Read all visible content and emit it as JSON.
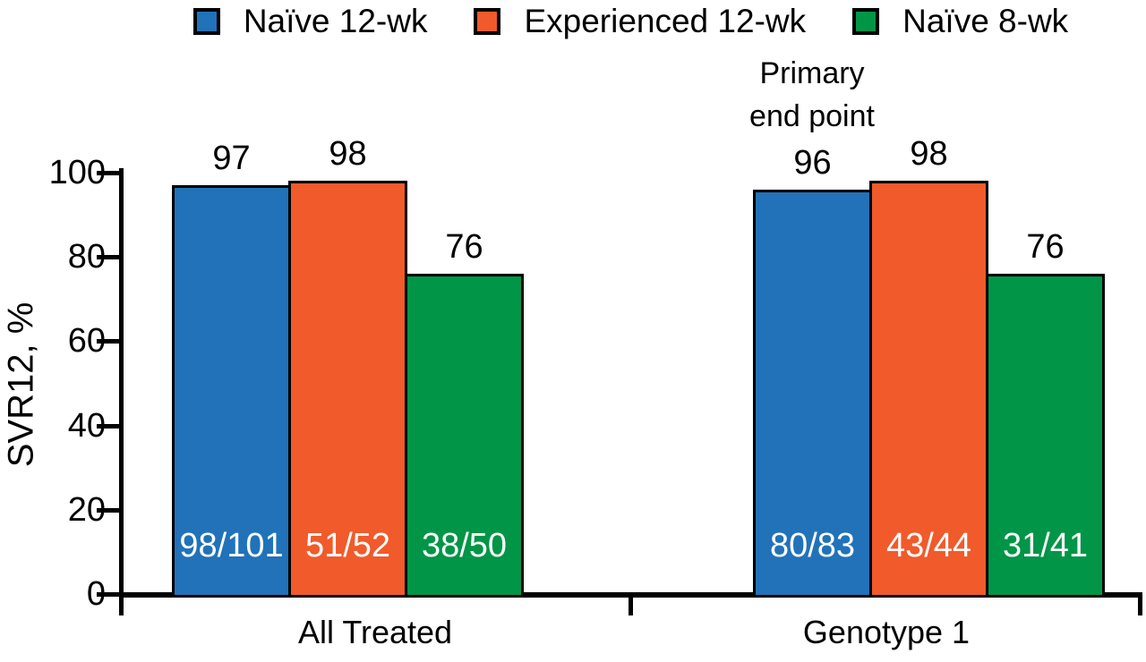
{
  "chart_data": {
    "type": "bar",
    "title": "",
    "ylabel": "SVR12, %",
    "xlabel": "",
    "ylim": [
      0,
      100
    ],
    "yticks": [
      0,
      20,
      40,
      60,
      80,
      100
    ],
    "grid": false,
    "legend_position": "top",
    "categories": [
      "All Treated",
      "Genotype 1"
    ],
    "series": [
      {
        "name": "Naïve 12-wk",
        "color": "#2172B9",
        "values": [
          97,
          96
        ],
        "bar_labels": [
          "98/101",
          "80/83"
        ]
      },
      {
        "name": "Experienced 12-wk",
        "color": "#F15A2B",
        "values": [
          98,
          98
        ],
        "bar_labels": [
          "51/52",
          "43/44"
        ]
      },
      {
        "name": "Naïve 8-wk",
        "color": "#009547",
        "values": [
          76,
          76
        ],
        "bar_labels": [
          "38/50",
          "31/41"
        ]
      }
    ],
    "annotation": {
      "lines": [
        "Primary",
        "end point"
      ],
      "category": "Genotype 1",
      "series": "Naïve 12-wk"
    },
    "colors": {
      "background": "#FFFFFF",
      "axis": "#000000",
      "bar_border": "#000000",
      "bar_label_text": "#FFFFFF",
      "text": "#000000"
    }
  }
}
